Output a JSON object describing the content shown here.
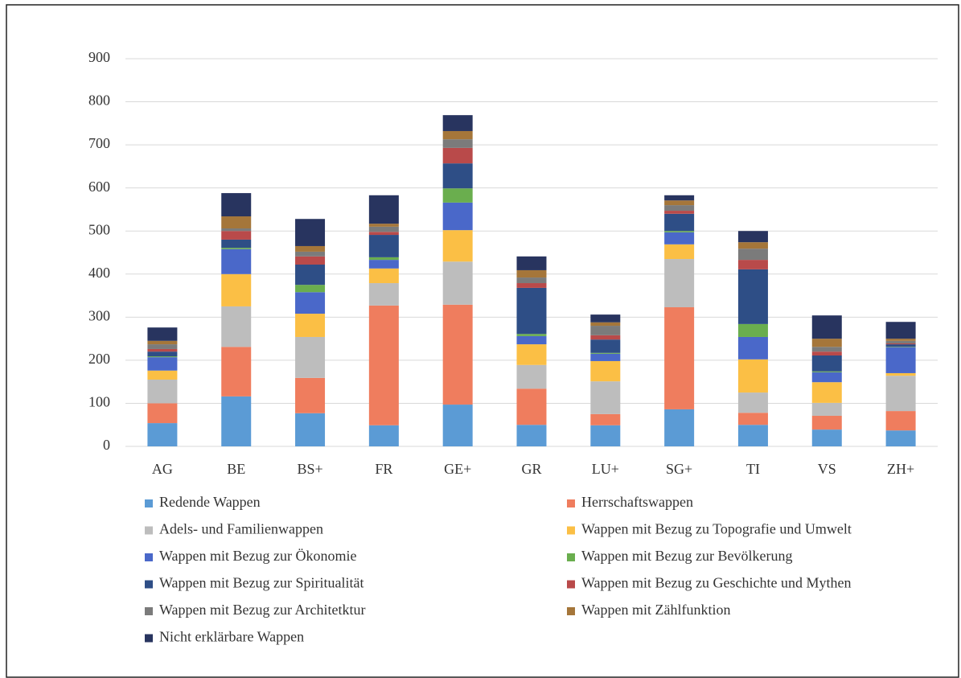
{
  "chart_data": {
    "type": "stacked_bar",
    "categories": [
      "AG",
      "BE",
      "BS+",
      "FR",
      "GE+",
      "GR",
      "LU+",
      "SG+",
      "TI",
      "VS",
      "ZH+"
    ],
    "series": [
      {
        "name": "Redende Wappen",
        "color": "#5b9bd5",
        "values": [
          54,
          116,
          77,
          49,
          97,
          50,
          49,
          86,
          50,
          39,
          37
        ]
      },
      {
        "name": "Herrschaftswappen",
        "color": "#ef7d5e",
        "values": [
          46,
          115,
          82,
          278,
          232,
          84,
          26,
          237,
          28,
          32,
          45
        ]
      },
      {
        "name": "Adels- und Familienwappen",
        "color": "#bdbdbd",
        "values": [
          55,
          94,
          95,
          52,
          100,
          55,
          76,
          112,
          47,
          30,
          82
        ]
      },
      {
        "name": "Wappen mit Bezug zu Topografie und Umwelt",
        "color": "#fbbf45",
        "values": [
          21,
          75,
          54,
          34,
          73,
          48,
          47,
          34,
          77,
          48,
          6
        ]
      },
      {
        "name": "Wappen mit Bezug zur Ökonomie",
        "color": "#4a68c9",
        "values": [
          31,
          58,
          50,
          20,
          64,
          19,
          17,
          28,
          52,
          23,
          60
        ]
      },
      {
        "name": "Wappen mit Bezug zur Bevölkerung",
        "color": "#6aae4e",
        "values": [
          2,
          3,
          17,
          6,
          33,
          5,
          2,
          3,
          30,
          2,
          1
        ]
      },
      {
        "name": "Wappen mit Bezug zur Spiritualität",
        "color": "#2e4e86",
        "values": [
          11,
          19,
          47,
          52,
          58,
          107,
          31,
          40,
          127,
          37,
          6
        ]
      },
      {
        "name": "Wappen mit Bezug zu Geschichte und Mythen",
        "color": "#b94a4a",
        "values": [
          6,
          20,
          19,
          7,
          36,
          11,
          10,
          7,
          22,
          9,
          2
        ]
      },
      {
        "name": "Wappen mit Bezug zur Architetktur",
        "color": "#7b7b7b",
        "values": [
          11,
          6,
          11,
          12,
          20,
          13,
          22,
          13,
          26,
          11,
          6
        ]
      },
      {
        "name": "Wappen mit Zählfunktion",
        "color": "#a5763a",
        "values": [
          8,
          28,
          13,
          7,
          19,
          17,
          8,
          11,
          15,
          19,
          5
        ]
      },
      {
        "name": "Nicht erklärbare Wappen",
        "color": "#28345f",
        "values": [
          31,
          54,
          63,
          66,
          37,
          32,
          18,
          12,
          26,
          54,
          39
        ]
      }
    ],
    "ylim": [
      0,
      900
    ],
    "yticks": [
      0,
      100,
      200,
      300,
      400,
      500,
      600,
      700,
      800,
      900
    ],
    "grid": true,
    "legend": "bottom"
  }
}
